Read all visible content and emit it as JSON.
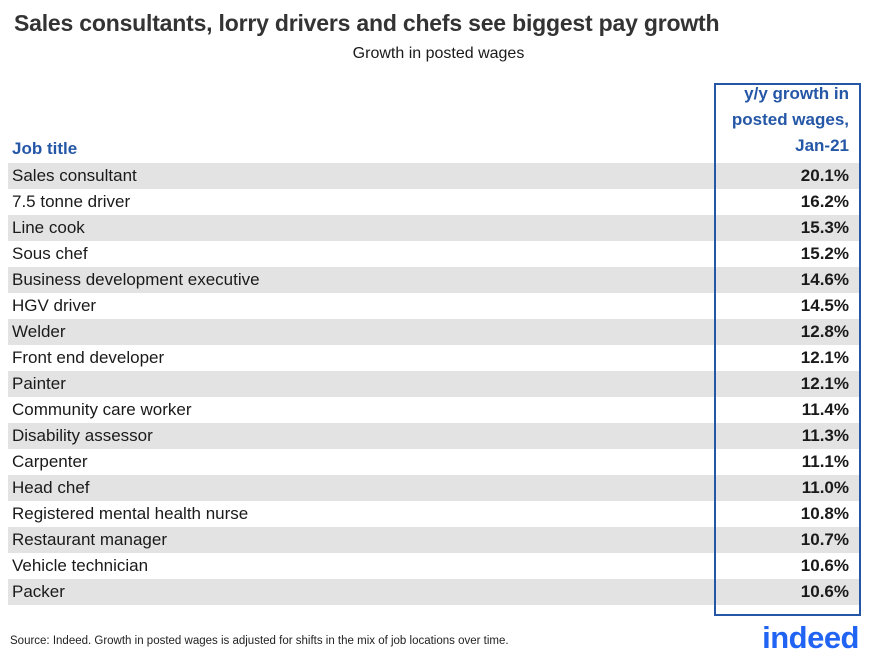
{
  "title": "Sales consultants, lorry drivers and chefs see biggest pay growth",
  "subtitle": "Growth in posted wages",
  "table": {
    "job_title_header": "Job title",
    "value_header_lines": [
      "y/y growth in",
      "posted wages,",
      "Jan-21"
    ],
    "rows": [
      {
        "job": "Sales consultant",
        "value": "20.1%"
      },
      {
        "job": "7.5 tonne driver",
        "value": "16.2%"
      },
      {
        "job": "Line cook",
        "value": "15.3%"
      },
      {
        "job": "Sous chef",
        "value": "15.2%"
      },
      {
        "job": "Business development executive",
        "value": "14.6%"
      },
      {
        "job": "HGV driver",
        "value": "14.5%"
      },
      {
        "job": "Welder",
        "value": "12.8%"
      },
      {
        "job": "Front end developer",
        "value": "12.1%"
      },
      {
        "job": "Painter",
        "value": "12.1%"
      },
      {
        "job": "Community care worker",
        "value": "11.4%"
      },
      {
        "job": "Disability assessor",
        "value": "11.3%"
      },
      {
        "job": "Carpenter",
        "value": "11.1%"
      },
      {
        "job": "Head chef",
        "value": "11.0%"
      },
      {
        "job": "Registered mental health nurse",
        "value": "10.8%"
      },
      {
        "job": "Restaurant manager",
        "value": "10.7%"
      },
      {
        "job": "Vehicle technician",
        "value": "10.6%"
      },
      {
        "job": "Packer",
        "value": "10.6%"
      }
    ]
  },
  "footer": {
    "source": "Source: Indeed. Growth in posted wages is adjusted for shifts in the mix of job locations over time.",
    "logo_text": "indeed"
  },
  "colors": {
    "accent_blue": "#2557a7",
    "logo_blue": "#2164f3",
    "stripe_gray": "#e3e3e3"
  },
  "chart_data": {
    "type": "table",
    "title": "Sales consultants, lorry drivers and chefs see biggest pay growth",
    "subtitle": "Growth in posted wages",
    "columns": [
      "Job title",
      "y/y growth in posted wages, Jan-21"
    ],
    "categories": [
      "Sales consultant",
      "7.5 tonne driver",
      "Line cook",
      "Sous chef",
      "Business development executive",
      "HGV driver",
      "Welder",
      "Front end developer",
      "Painter",
      "Community care worker",
      "Disability assessor",
      "Carpenter",
      "Head chef",
      "Registered mental health nurse",
      "Restaurant manager",
      "Vehicle technician",
      "Packer"
    ],
    "values": [
      20.1,
      16.2,
      15.3,
      15.2,
      14.6,
      14.5,
      12.8,
      12.1,
      12.1,
      11.4,
      11.3,
      11.1,
      11.0,
      10.8,
      10.7,
      10.6,
      10.6
    ],
    "value_unit": "%",
    "source_note": "Source: Indeed. Growth in posted wages is adjusted for shifts in the mix of job locations over time."
  }
}
